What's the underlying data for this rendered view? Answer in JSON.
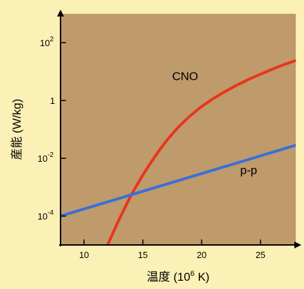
{
  "chart_data": {
    "type": "line",
    "title": "",
    "xlabel": "温度 (10⁶ K)",
    "ylabel": "産能 (W/kg)",
    "xlim": [
      8,
      28
    ],
    "ylim": [
      -5,
      3
    ],
    "y_scale": "log",
    "grid": false,
    "x_ticks": [
      {
        "value": 10,
        "label": "10"
      },
      {
        "value": 15,
        "label": "15"
      },
      {
        "value": 20,
        "label": "20"
      },
      {
        "value": 25,
        "label": "25"
      }
    ],
    "y_ticks": [
      {
        "value": -4,
        "base": "10",
        "exp": "-4"
      },
      {
        "value": -2,
        "base": "10",
        "exp": "-2"
      },
      {
        "value": 0,
        "base": "1",
        "exp": ""
      },
      {
        "value": 2,
        "base": "10",
        "exp": "2"
      }
    ],
    "series": [
      {
        "name": "CNO",
        "color": "#e8351c",
        "label_at": [
          18.6,
          0.7
        ],
        "points": [
          [
            12.0,
            -5.0
          ],
          [
            12.5,
            -4.55
          ],
          [
            13,
            -4.1
          ],
          [
            13.5,
            -3.68
          ],
          [
            14,
            -3.28
          ],
          [
            14.5,
            -2.92
          ],
          [
            15,
            -2.58
          ],
          [
            15.5,
            -2.26
          ],
          [
            16,
            -1.96
          ],
          [
            16.5,
            -1.67
          ],
          [
            17,
            -1.4
          ],
          [
            17.5,
            -1.16
          ],
          [
            18,
            -0.93
          ],
          [
            18.5,
            -0.73
          ],
          [
            19,
            -0.54
          ],
          [
            19.5,
            -0.37
          ],
          [
            20,
            -0.21
          ],
          [
            21,
            0.07
          ],
          [
            22,
            0.31
          ],
          [
            23,
            0.53
          ],
          [
            24,
            0.73
          ],
          [
            25,
            0.91
          ],
          [
            26,
            1.08
          ],
          [
            27,
            1.24
          ],
          [
            28,
            1.38
          ]
        ]
      },
      {
        "name": "p-p",
        "color": "#3a6fd8",
        "label_at": [
          24.0,
          -2.55
        ],
        "points": [
          [
            8,
            -4.0
          ],
          [
            28,
            -1.55
          ]
        ]
      }
    ]
  }
}
